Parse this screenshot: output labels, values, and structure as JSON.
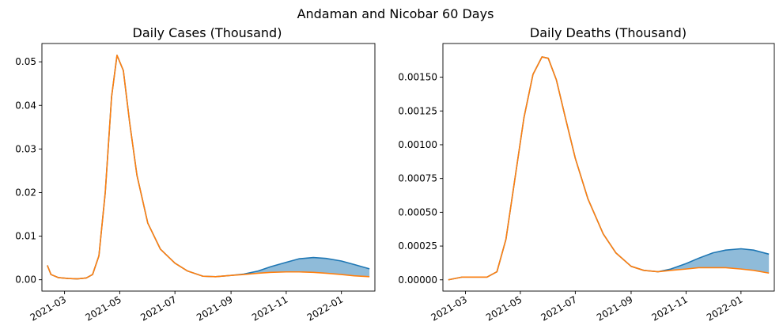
{
  "figure_title": "Andaman and Nicobar 60 Days",
  "chart_data": [
    {
      "type": "line",
      "title": "Daily Cases (Thousand)",
      "xlabel": "",
      "ylabel": "",
      "x_range": [
        "2021-02-04",
        "2022-02-07"
      ],
      "ylim": [
        -0.0026,
        0.0542
      ],
      "x_ticks": [
        "2021-03",
        "2021-05",
        "2021-07",
        "2021-09",
        "2021-11",
        "2022-01"
      ],
      "y_ticks": [
        "0.00",
        "0.01",
        "0.02",
        "0.03",
        "0.04",
        "0.05"
      ],
      "grid": false,
      "fill_between": true,
      "series": [
        {
          "color": "#1f77b4",
          "x": [
            "2021-02-10",
            "2021-02-14",
            "2021-02-22",
            "2021-03-05",
            "2021-03-15",
            "2021-03-25",
            "2021-04-01",
            "2021-04-08",
            "2021-04-15",
            "2021-04-22",
            "2021-04-28",
            "2021-05-05",
            "2021-05-12",
            "2021-05-20",
            "2021-06-01",
            "2021-06-15",
            "2021-07-01",
            "2021-07-15",
            "2021-08-01",
            "2021-08-15",
            "2021-09-01",
            "2021-09-15",
            "2021-10-01",
            "2021-10-15",
            "2021-11-01",
            "2021-11-15",
            "2021-12-01",
            "2021-12-15",
            "2022-01-01",
            "2022-01-15",
            "2022-02-01"
          ],
          "values": [
            0.0033,
            0.0012,
            0.0005,
            0.0003,
            0.0002,
            0.0004,
            0.0012,
            0.0055,
            0.02,
            0.042,
            0.0515,
            0.048,
            0.036,
            0.024,
            0.013,
            0.007,
            0.0038,
            0.002,
            0.0008,
            0.0007,
            0.001,
            0.0013,
            0.002,
            0.003,
            0.004,
            0.0048,
            0.0051,
            0.0049,
            0.0043,
            0.0035,
            0.0025
          ]
        },
        {
          "color": "#ff7f0e",
          "x": [
            "2021-02-10",
            "2021-02-14",
            "2021-02-22",
            "2021-03-05",
            "2021-03-15",
            "2021-03-25",
            "2021-04-01",
            "2021-04-08",
            "2021-04-15",
            "2021-04-22",
            "2021-04-28",
            "2021-05-05",
            "2021-05-12",
            "2021-05-20",
            "2021-06-01",
            "2021-06-15",
            "2021-07-01",
            "2021-07-15",
            "2021-08-01",
            "2021-08-15",
            "2021-09-01",
            "2021-09-15",
            "2021-10-01",
            "2021-10-15",
            "2021-11-01",
            "2021-11-15",
            "2021-12-01",
            "2021-12-15",
            "2022-01-01",
            "2022-01-15",
            "2022-02-01"
          ],
          "values": [
            0.0033,
            0.0012,
            0.0005,
            0.0003,
            0.0002,
            0.0004,
            0.0012,
            0.0055,
            0.02,
            0.042,
            0.0515,
            0.048,
            0.036,
            0.024,
            0.013,
            0.007,
            0.0038,
            0.002,
            0.0008,
            0.0007,
            0.001,
            0.0012,
            0.0015,
            0.0017,
            0.0018,
            0.0018,
            0.0017,
            0.0015,
            0.0012,
            0.0009,
            0.0007
          ]
        }
      ]
    },
    {
      "type": "line",
      "title": "Daily Deaths (Thousand)",
      "xlabel": "",
      "ylabel": "",
      "x_range": [
        "2021-02-04",
        "2022-02-07"
      ],
      "ylim": [
        -8.33e-05,
        0.0017493
      ],
      "x_ticks": [
        "2021-03",
        "2021-05",
        "2021-07",
        "2021-09",
        "2021-11",
        "2022-01"
      ],
      "y_ticks": [
        "0.00000",
        "0.00025",
        "0.00050",
        "0.00075",
        "0.00100",
        "0.00125",
        "0.00150"
      ],
      "grid": false,
      "fill_between": true,
      "series": [
        {
          "color": "#1f77b4",
          "x": [
            "2021-02-10",
            "2021-02-25",
            "2021-03-10",
            "2021-03-25",
            "2021-04-05",
            "2021-04-15",
            "2021-04-25",
            "2021-05-05",
            "2021-05-15",
            "2021-05-25",
            "2021-06-01",
            "2021-06-10",
            "2021-06-20",
            "2021-07-01",
            "2021-07-15",
            "2021-08-01",
            "2021-08-15",
            "2021-09-01",
            "2021-09-15",
            "2021-10-01",
            "2021-10-15",
            "2021-11-01",
            "2021-11-15",
            "2021-12-01",
            "2021-12-15",
            "2022-01-01",
            "2022-01-15",
            "2022-02-01"
          ],
          "values": [
            0.0,
            2e-05,
            2e-05,
            2e-05,
            6e-05,
            0.0003,
            0.00075,
            0.0012,
            0.00152,
            0.00165,
            0.00164,
            0.00148,
            0.0012,
            0.0009,
            0.0006,
            0.00034,
            0.0002,
            0.0001,
            7e-05,
            6e-05,
            8e-05,
            0.00012,
            0.00016,
            0.0002,
            0.00022,
            0.00023,
            0.00022,
            0.00019
          ]
        },
        {
          "color": "#ff7f0e",
          "x": [
            "2021-02-10",
            "2021-02-25",
            "2021-03-10",
            "2021-03-25",
            "2021-04-05",
            "2021-04-15",
            "2021-04-25",
            "2021-05-05",
            "2021-05-15",
            "2021-05-25",
            "2021-06-01",
            "2021-06-10",
            "2021-06-20",
            "2021-07-01",
            "2021-07-15",
            "2021-08-01",
            "2021-08-15",
            "2021-09-01",
            "2021-09-15",
            "2021-10-01",
            "2021-10-15",
            "2021-11-01",
            "2021-11-15",
            "2021-12-01",
            "2021-12-15",
            "2022-01-01",
            "2022-01-15",
            "2022-02-01"
          ],
          "values": [
            0.0,
            2e-05,
            2e-05,
            2e-05,
            6e-05,
            0.0003,
            0.00075,
            0.0012,
            0.00152,
            0.00165,
            0.00164,
            0.00148,
            0.0012,
            0.0009,
            0.0006,
            0.00034,
            0.0002,
            0.0001,
            7e-05,
            6e-05,
            7e-05,
            8e-05,
            9e-05,
            9e-05,
            9e-05,
            8e-05,
            7e-05,
            5e-05
          ]
        }
      ]
    }
  ]
}
